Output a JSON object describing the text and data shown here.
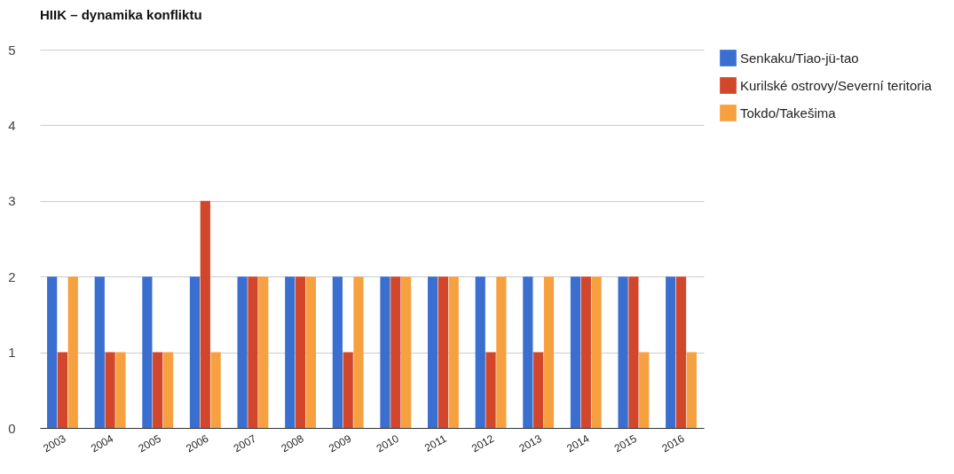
{
  "chart_data": {
    "type": "bar",
    "title": "HIIK – dynamika konfliktu",
    "categories": [
      "2003",
      "2004",
      "2005",
      "2006",
      "2007",
      "2008",
      "2009",
      "2010",
      "2011",
      "2012",
      "2013",
      "2014",
      "2015",
      "2016"
    ],
    "series": [
      {
        "name": "Senkaku/Tiao-jü-tao",
        "color": "#3a6fd0",
        "values": [
          2,
          2,
          2,
          2,
          2,
          2,
          2,
          2,
          2,
          2,
          2,
          2,
          2,
          2
        ]
      },
      {
        "name": "Kurilské ostrovy/Severní teritoria",
        "color": "#d2462c",
        "values": [
          1,
          1,
          1,
          3,
          2,
          2,
          1,
          2,
          2,
          1,
          1,
          2,
          2,
          2
        ]
      },
      {
        "name": "Tokdo/Takešima",
        "color": "#f6a040",
        "values": [
          2,
          1,
          1,
          1,
          2,
          2,
          2,
          2,
          2,
          2,
          2,
          2,
          1,
          1
        ]
      }
    ],
    "ylim": [
      0,
      5
    ],
    "yticks": [
      0,
      1,
      2,
      3,
      4,
      5
    ],
    "grid": "y",
    "legend": "top right"
  }
}
